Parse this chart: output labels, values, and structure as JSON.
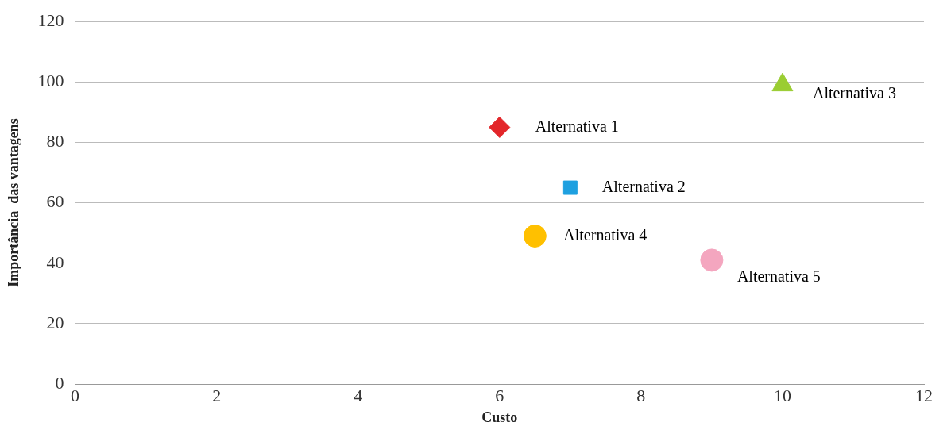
{
  "chart_data": {
    "type": "scatter",
    "xlabel": "Custo",
    "ylabel": "Importância  das vantagens",
    "xlim": [
      0,
      12
    ],
    "xticks": [
      0,
      2,
      4,
      6,
      8,
      10,
      12
    ],
    "ylim": [
      0,
      120
    ],
    "yticks": [
      0,
      20,
      40,
      60,
      80,
      100,
      120
    ],
    "grid": "y",
    "legend": false,
    "series": [
      {
        "name": "Alternativa 1",
        "color": "#e3262a",
        "marker": "diamond",
        "x": [
          6
        ],
        "values": [
          85
        ]
      },
      {
        "name": "Alternativa 2",
        "color": "#1ea0e0",
        "marker": "square",
        "x": [
          7
        ],
        "values": [
          65
        ]
      },
      {
        "name": "Alternativa 3",
        "color": "#9acd32",
        "marker": "triangle",
        "x": [
          10
        ],
        "values": [
          99
        ]
      },
      {
        "name": "Alternativa 4",
        "color": "#ffc000",
        "x": [
          6.5
        ],
        "values": [
          49
        ]
      },
      {
        "name": "Alternativa 5",
        "color": "#f4a6bf",
        "marker": "circle",
        "x": [
          9
        ],
        "values": [
          41
        ]
      }
    ]
  }
}
